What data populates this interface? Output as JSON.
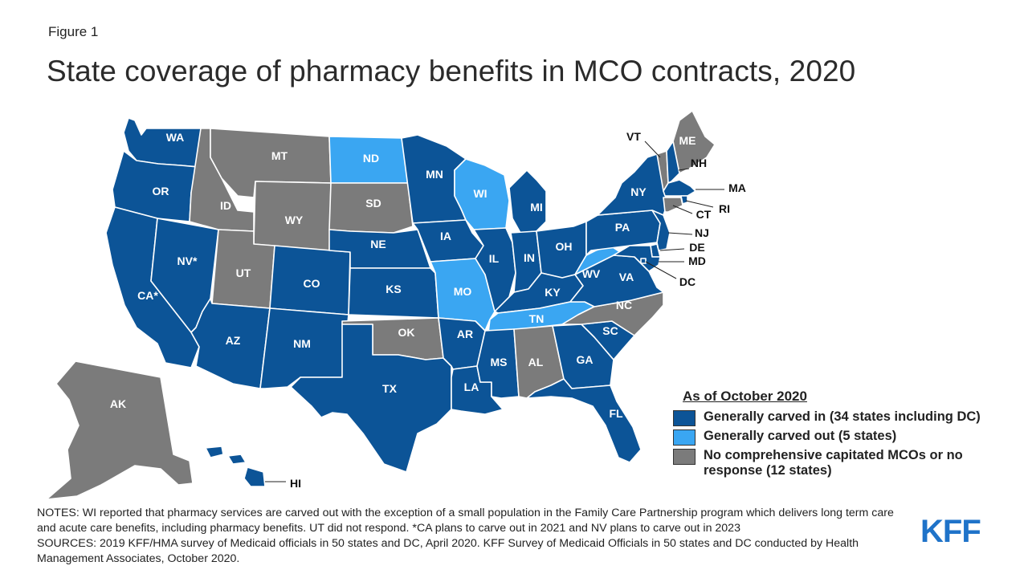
{
  "figure_label": "Figure 1",
  "title": "State coverage of pharmacy benefits in MCO contracts, 2020",
  "colors": {
    "carved_in": "#0c5497",
    "carved_out": "#3aa6f2",
    "none": "#7b7b7b",
    "border": "#ffffff"
  },
  "legend": {
    "title": "As of October 2020",
    "items": [
      {
        "label": "Generally carved in (34 states including DC)",
        "color": "#0c5497"
      },
      {
        "label": "Generally carved out (5 states)",
        "color": "#3aa6f2"
      },
      {
        "label": "No comprehensive capitated MCOs or no response (12 states)",
        "color": "#7b7b7b"
      }
    ]
  },
  "states": [
    {
      "code": "WA",
      "label": "WA",
      "status": "in"
    },
    {
      "code": "OR",
      "label": "OR",
      "status": "in"
    },
    {
      "code": "CA",
      "label": "CA*",
      "status": "in"
    },
    {
      "code": "NV",
      "label": "NV*",
      "status": "in"
    },
    {
      "code": "ID",
      "label": "ID",
      "status": "none"
    },
    {
      "code": "MT",
      "label": "MT",
      "status": "none"
    },
    {
      "code": "WY",
      "label": "WY",
      "status": "none"
    },
    {
      "code": "UT",
      "label": "UT",
      "status": "none"
    },
    {
      "code": "AZ",
      "label": "AZ",
      "status": "in"
    },
    {
      "code": "CO",
      "label": "CO",
      "status": "in"
    },
    {
      "code": "NM",
      "label": "NM",
      "status": "in"
    },
    {
      "code": "ND",
      "label": "ND",
      "status": "out"
    },
    {
      "code": "SD",
      "label": "SD",
      "status": "none"
    },
    {
      "code": "NE",
      "label": "NE",
      "status": "in"
    },
    {
      "code": "KS",
      "label": "KS",
      "status": "in"
    },
    {
      "code": "OK",
      "label": "OK",
      "status": "none"
    },
    {
      "code": "TX",
      "label": "TX",
      "status": "in"
    },
    {
      "code": "MN",
      "label": "MN",
      "status": "in"
    },
    {
      "code": "IA",
      "label": "IA",
      "status": "in"
    },
    {
      "code": "MO",
      "label": "MO",
      "status": "out"
    },
    {
      "code": "AR",
      "label": "AR",
      "status": "in"
    },
    {
      "code": "LA",
      "label": "LA",
      "status": "in"
    },
    {
      "code": "WI",
      "label": "WI",
      "status": "out"
    },
    {
      "code": "IL",
      "label": "IL",
      "status": "in"
    },
    {
      "code": "MI",
      "label": "MI",
      "status": "in"
    },
    {
      "code": "IN",
      "label": "IN",
      "status": "in"
    },
    {
      "code": "OH",
      "label": "OH",
      "status": "in"
    },
    {
      "code": "KY",
      "label": "KY",
      "status": "in"
    },
    {
      "code": "TN",
      "label": "TN",
      "status": "out"
    },
    {
      "code": "MS",
      "label": "MS",
      "status": "in"
    },
    {
      "code": "AL",
      "label": "AL",
      "status": "none"
    },
    {
      "code": "GA",
      "label": "GA",
      "status": "in"
    },
    {
      "code": "FL",
      "label": "FL",
      "status": "in"
    },
    {
      "code": "SC",
      "label": "SC",
      "status": "in"
    },
    {
      "code": "NC",
      "label": "NC",
      "status": "none"
    },
    {
      "code": "VA",
      "label": "VA",
      "status": "in"
    },
    {
      "code": "WV",
      "label": "WV",
      "status": "out"
    },
    {
      "code": "PA",
      "label": "PA",
      "status": "in"
    },
    {
      "code": "NY",
      "label": "NY",
      "status": "in"
    },
    {
      "code": "ME",
      "label": "ME",
      "status": "none"
    },
    {
      "code": "VT",
      "label": "VT",
      "status": "none"
    },
    {
      "code": "NH",
      "label": "NH",
      "status": "in"
    },
    {
      "code": "MA",
      "label": "MA",
      "status": "in"
    },
    {
      "code": "RI",
      "label": "RI",
      "status": "in"
    },
    {
      "code": "CT",
      "label": "CT",
      "status": "none"
    },
    {
      "code": "NJ",
      "label": "NJ",
      "status": "in"
    },
    {
      "code": "DE",
      "label": "DE",
      "status": "in"
    },
    {
      "code": "MD",
      "label": "MD",
      "status": "in"
    },
    {
      "code": "DC",
      "label": "DC",
      "status": "in"
    },
    {
      "code": "AK",
      "label": "AK",
      "status": "none"
    },
    {
      "code": "HI",
      "label": "HI",
      "status": "in"
    }
  ],
  "notes": {
    "line1": "NOTES: WI reported that pharmacy services are carved out with the exception of a small population in the Family Care Partnership program which delivers long term care and acute care benefits, including pharmacy benefits. UT did not respond. *CA plans to carve out in 2021 and NV plans to carve out in 2023",
    "line2": "SOURCES: 2019 KFF/HMA survey of Medicaid officials in 50 states and DC, April 2020. KFF Survey of Medicaid Officials in 50 states and DC conducted by Health Management Associates, October 2020."
  },
  "logo": "KFF"
}
